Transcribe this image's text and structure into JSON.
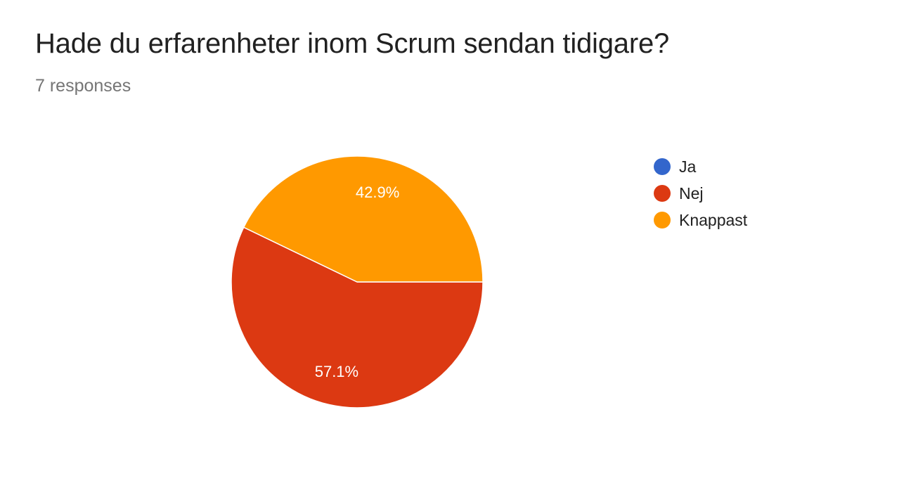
{
  "header": {
    "title": "Hade du erfarenheter inom Scrum sendan tidigare?",
    "responses": "7 responses"
  },
  "chart_data": {
    "type": "pie",
    "categories": [
      "Ja",
      "Nej",
      "Knappast"
    ],
    "values": [
      0,
      4,
      3
    ],
    "percent_labels": [
      "",
      "57.1%",
      "42.9%"
    ],
    "colors": [
      "#3366cc",
      "#dc3912",
      "#ff9900"
    ],
    "legend_position": "right"
  }
}
